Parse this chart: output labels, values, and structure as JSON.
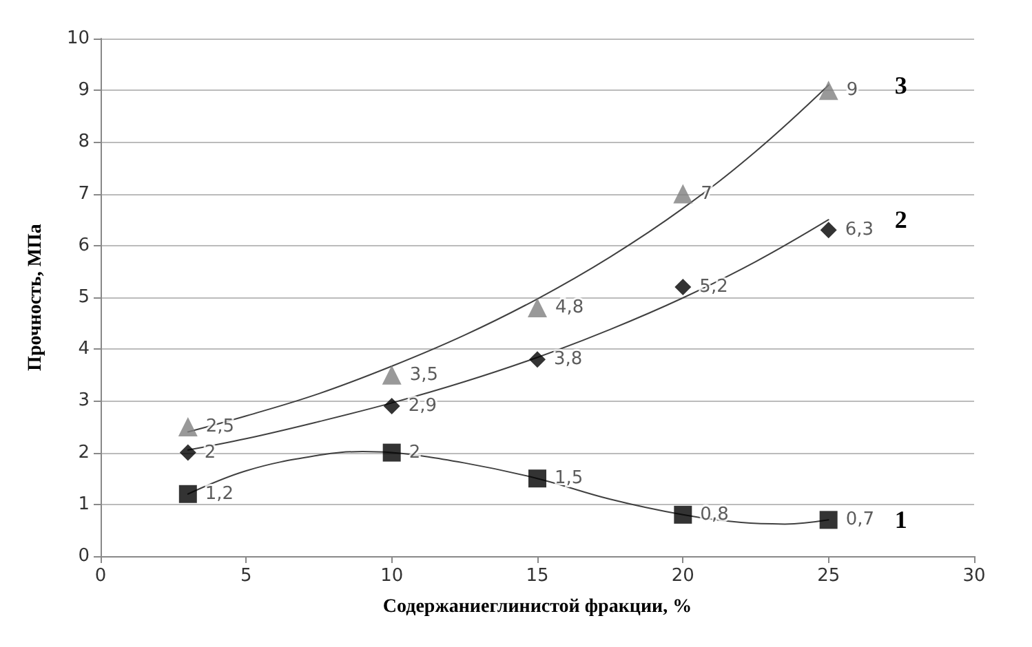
{
  "chart_data": {
    "type": "scatter",
    "xlabel": "Содержаниеглинистой фракции, %",
    "ylabel": "Прочность, МПа",
    "xlim": [
      0,
      30
    ],
    "xticks": [
      0,
      5,
      10,
      15,
      20,
      25,
      30
    ],
    "ylim": [
      0,
      10
    ],
    "yticks": [
      0,
      1,
      2,
      3,
      4,
      5,
      6,
      7,
      8,
      9,
      10
    ],
    "grid": "y",
    "series": [
      {
        "marker": "square",
        "color": "#000000",
        "x": [
          3,
          10,
          15,
          20,
          25
        ],
        "values": [
          1.2,
          2,
          1.5,
          0.8,
          0.7
        ],
        "value_labels": [
          "1,2",
          "2",
          "1,5",
          "0,8",
          "0,7"
        ]
      },
      {
        "marker": "diamond",
        "color": "#000000",
        "x": [
          3,
          10,
          15,
          20,
          25
        ],
        "values": [
          2,
          2.9,
          3.8,
          5.2,
          6.3
        ],
        "value_labels": [
          "2",
          "2,9",
          "3,8",
          "5,2",
          "6,3"
        ]
      },
      {
        "marker": "triangle",
        "color": "#808080",
        "x": [
          3,
          10,
          15,
          20,
          25
        ],
        "values": [
          2.5,
          3.5,
          4.8,
          7,
          9
        ],
        "value_labels": [
          "2,5",
          "3,5",
          "4,8",
          "7",
          "9"
        ]
      },
      {
        "type": "line",
        "name": "1",
        "marker": "none",
        "color": "#404040",
        "x": [
          3,
          5,
          7.5,
          9,
          10,
          12.5,
          15,
          17.5,
          20,
          22,
          23.5,
          25
        ],
        "values": [
          1.2,
          1.65,
          1.95,
          2.02,
          2,
          1.8,
          1.5,
          1.1,
          0.8,
          0.65,
          0.62,
          0.7
        ]
      },
      {
        "type": "line",
        "name": "2",
        "marker": "none",
        "color": "#404040",
        "x": [
          3,
          5,
          7.5,
          10,
          12.5,
          15,
          17.5,
          20,
          22.5,
          25
        ],
        "values": [
          2.05,
          2.27,
          2.6,
          2.96,
          3.37,
          3.84,
          4.38,
          4.99,
          5.69,
          6.5
        ]
      },
      {
        "type": "line",
        "name": "3",
        "marker": "none",
        "color": "#404040",
        "x": [
          3,
          5,
          7.5,
          10,
          12.5,
          15,
          17.5,
          20,
          22.5,
          25
        ],
        "values": [
          2.4,
          2.71,
          3.14,
          3.67,
          4.27,
          4.97,
          5.78,
          6.72,
          7.82,
          9.1
        ]
      }
    ]
  }
}
